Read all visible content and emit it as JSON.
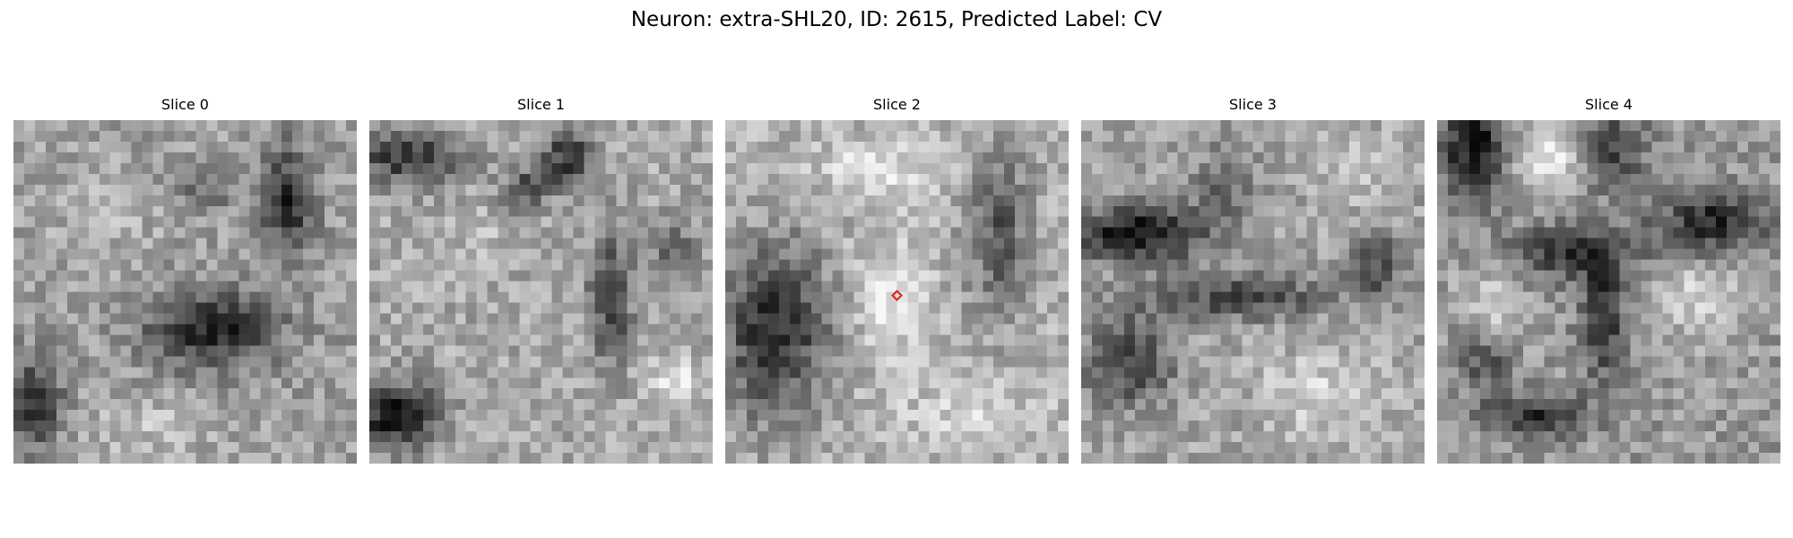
{
  "figure": {
    "title": "Neuron: extra-SHL20, ID: 2615, Predicted Label: CV"
  },
  "slices": [
    {
      "label": "Slice 0"
    },
    {
      "label": "Slice 1"
    },
    {
      "label": "Slice 2"
    },
    {
      "label": "Slice 3"
    },
    {
      "label": "Slice 4"
    }
  ],
  "marker": {
    "slice_index": 2,
    "color": "#e31a1c",
    "shape": "diamond",
    "position": "center"
  },
  "colormap": "gray"
}
